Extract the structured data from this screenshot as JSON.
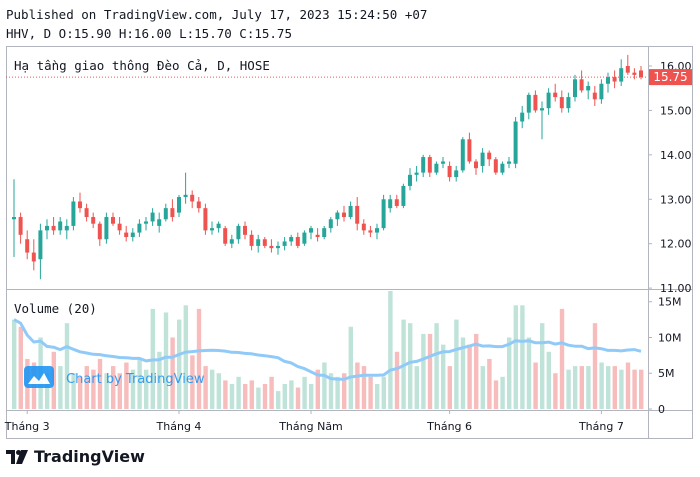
{
  "header": {
    "published": "Published on TradingView.com, July 17, 2023 15:24:50 +07",
    "ohlc": "HHV, D O:15.90 H:16.00 L:15.70 C:15.75"
  },
  "chart_title": "Hạ tầng giao thông Đèo Cả, D, HOSE",
  "last_price_label": "15.75",
  "volume_label": "Volume (20)",
  "watermark": "Chart by TradingView",
  "footer_brand": "TradingView",
  "colors": {
    "up": "#26a69a",
    "down": "#ef5350",
    "vol_up": "#bfe3d8",
    "vol_down": "#f7bcbc",
    "ma": "#90caf9",
    "price_line": "#ef5350"
  },
  "chart_data": {
    "type": "candlestick",
    "symbol": "HHV",
    "interval": "D",
    "exchange": "HOSE",
    "price_axis": {
      "ticks": [
        "16.00",
        "15.00",
        "14.00",
        "13.00",
        "12.00",
        "11.00"
      ],
      "range": [
        10.98,
        16.45
      ]
    },
    "volume_axis": {
      "ticks": [
        "15M",
        "10M",
        "5M",
        "0"
      ],
      "range": [
        0,
        16.5
      ]
    },
    "x_ticks": [
      {
        "label": "Tháng 3",
        "index": 2
      },
      {
        "label": "Tháng 4",
        "index": 25
      },
      {
        "label": "Tháng Năm",
        "index": 45
      },
      {
        "label": "Tháng 6",
        "index": 66
      },
      {
        "label": "Tháng 7",
        "index": 89
      }
    ],
    "candles": [
      [
        12.55,
        13.45,
        11.7,
        12.6
      ],
      [
        12.6,
        12.7,
        12.0,
        12.2
      ],
      [
        12.1,
        12.3,
        11.65,
        11.8
      ],
      [
        11.8,
        12.1,
        11.4,
        11.6
      ],
      [
        11.65,
        12.45,
        11.2,
        12.3
      ],
      [
        12.3,
        12.55,
        12.1,
        12.4
      ],
      [
        12.4,
        12.6,
        12.2,
        12.3
      ],
      [
        12.3,
        12.6,
        12.2,
        12.5
      ],
      [
        12.3,
        12.55,
        12.1,
        12.4
      ],
      [
        12.4,
        13.05,
        12.3,
        12.95
      ],
      [
        12.95,
        13.15,
        12.7,
        12.8
      ],
      [
        12.8,
        12.9,
        12.5,
        12.6
      ],
      [
        12.6,
        12.7,
        12.35,
        12.45
      ],
      [
        12.45,
        12.5,
        11.95,
        12.1
      ],
      [
        12.1,
        12.7,
        12.0,
        12.6
      ],
      [
        12.6,
        12.7,
        12.4,
        12.45
      ],
      [
        12.45,
        12.6,
        12.2,
        12.3
      ],
      [
        12.25,
        12.4,
        12.05,
        12.15
      ],
      [
        12.15,
        12.35,
        12.05,
        12.25
      ],
      [
        12.25,
        12.55,
        12.15,
        12.45
      ],
      [
        12.45,
        12.6,
        12.3,
        12.5
      ],
      [
        12.5,
        12.8,
        12.4,
        12.7
      ],
      [
        12.4,
        12.7,
        12.25,
        12.55
      ],
      [
        12.55,
        12.9,
        12.5,
        12.8
      ],
      [
        12.8,
        13.0,
        12.5,
        12.6
      ],
      [
        12.7,
        13.1,
        12.6,
        13.05
      ],
      [
        13.05,
        13.6,
        12.9,
        13.1
      ],
      [
        13.1,
        13.2,
        12.8,
        12.95
      ],
      [
        12.95,
        13.05,
        12.7,
        12.8
      ],
      [
        12.8,
        12.9,
        12.2,
        12.3
      ],
      [
        12.3,
        12.5,
        12.2,
        12.35
      ],
      [
        12.35,
        12.5,
        12.25,
        12.45
      ],
      [
        12.35,
        12.4,
        11.95,
        12.0
      ],
      [
        12.0,
        12.2,
        11.9,
        12.1
      ],
      [
        12.1,
        12.45,
        12.0,
        12.4
      ],
      [
        12.4,
        12.5,
        12.1,
        12.2
      ],
      [
        12.2,
        12.3,
        11.85,
        11.95
      ],
      [
        11.95,
        12.2,
        11.8,
        12.1
      ],
      [
        12.1,
        12.15,
        11.9,
        11.95
      ],
      [
        11.95,
        12.1,
        11.8,
        11.9
      ],
      [
        11.9,
        12.05,
        11.75,
        11.95
      ],
      [
        11.95,
        12.15,
        11.85,
        12.05
      ],
      [
        12.05,
        12.2,
        11.95,
        12.15
      ],
      [
        12.15,
        12.25,
        11.9,
        11.95
      ],
      [
        12.0,
        12.3,
        11.95,
        12.25
      ],
      [
        12.25,
        12.4,
        12.1,
        12.35
      ],
      [
        12.2,
        12.35,
        12.05,
        12.15
      ],
      [
        12.15,
        12.4,
        12.1,
        12.35
      ],
      [
        12.35,
        12.6,
        12.25,
        12.55
      ],
      [
        12.55,
        12.75,
        12.4,
        12.7
      ],
      [
        12.7,
        12.85,
        12.5,
        12.6
      ],
      [
        12.6,
        12.95,
        12.55,
        12.85
      ],
      [
        12.85,
        13.05,
        12.3,
        12.45
      ],
      [
        12.45,
        12.55,
        12.2,
        12.3
      ],
      [
        12.3,
        12.4,
        12.15,
        12.25
      ],
      [
        12.25,
        12.45,
        12.1,
        12.35
      ],
      [
        12.35,
        13.1,
        12.3,
        13.0
      ],
      [
        12.8,
        13.1,
        12.7,
        13.0
      ],
      [
        13.0,
        13.1,
        12.8,
        12.85
      ],
      [
        12.85,
        13.35,
        12.8,
        13.3
      ],
      [
        13.3,
        13.7,
        13.2,
        13.55
      ],
      [
        13.55,
        13.75,
        13.4,
        13.6
      ],
      [
        13.6,
        14.0,
        13.5,
        13.95
      ],
      [
        13.95,
        14.0,
        13.5,
        13.6
      ],
      [
        13.6,
        13.85,
        13.55,
        13.8
      ],
      [
        13.8,
        13.95,
        13.7,
        13.85
      ],
      [
        13.75,
        13.85,
        13.4,
        13.5
      ],
      [
        13.5,
        13.75,
        13.4,
        13.65
      ],
      [
        13.65,
        14.4,
        13.6,
        14.35
      ],
      [
        14.35,
        14.5,
        13.8,
        13.85
      ],
      [
        13.85,
        13.9,
        13.55,
        13.7
      ],
      [
        13.75,
        14.15,
        13.6,
        14.05
      ],
      [
        14.05,
        14.1,
        13.75,
        13.9
      ],
      [
        13.9,
        13.95,
        13.55,
        13.6
      ],
      [
        13.6,
        13.85,
        13.55,
        13.8
      ],
      [
        13.8,
        13.95,
        13.7,
        13.85
      ],
      [
        13.8,
        14.85,
        13.7,
        14.75
      ],
      [
        14.75,
        15.1,
        14.6,
        14.95
      ],
      [
        14.95,
        15.4,
        14.8,
        15.35
      ],
      [
        15.35,
        15.45,
        14.95,
        15.0
      ],
      [
        15.0,
        15.2,
        14.35,
        15.05
      ],
      [
        15.05,
        15.5,
        14.9,
        15.4
      ],
      [
        15.4,
        15.6,
        15.2,
        15.3
      ],
      [
        15.3,
        15.45,
        14.95,
        15.05
      ],
      [
        15.05,
        15.4,
        14.95,
        15.3
      ],
      [
        15.3,
        15.8,
        15.2,
        15.7
      ],
      [
        15.7,
        15.9,
        15.4,
        15.45
      ],
      [
        15.45,
        15.65,
        15.25,
        15.55
      ],
      [
        15.4,
        15.55,
        15.1,
        15.25
      ],
      [
        15.25,
        15.7,
        15.15,
        15.6
      ],
      [
        15.6,
        15.85,
        15.4,
        15.75
      ],
      [
        15.75,
        15.9,
        15.5,
        15.65
      ],
      [
        15.65,
        16.15,
        15.55,
        15.95
      ],
      [
        16.0,
        16.25,
        15.8,
        15.85
      ],
      [
        15.85,
        15.95,
        15.7,
        15.8
      ],
      [
        15.9,
        16.0,
        15.7,
        15.75
      ]
    ],
    "volumes": [
      12.5,
      11.5,
      7.0,
      6.5,
      10.0,
      5.0,
      8.0,
      6.0,
      12.0,
      5.0,
      4.5,
      6.0,
      5.5,
      7.0,
      5.0,
      6.0,
      5.0,
      6.5,
      5.5,
      7.0,
      5.5,
      14.0,
      8.0,
      13.5,
      10.0,
      12.5,
      14.5,
      7.5,
      14.0,
      6.0,
      5.5,
      5.0,
      4.0,
      3.5,
      4.5,
      3.5,
      4.0,
      3.0,
      3.5,
      4.5,
      2.5,
      3.5,
      4.0,
      3.0,
      4.5,
      3.5,
      5.5,
      6.5,
      5.0,
      4.5,
      5.0,
      11.5,
      6.5,
      6.0,
      4.5,
      3.5,
      4.5,
      16.5,
      8.0,
      12.5,
      12.0,
      6.0,
      10.5,
      10.5,
      12.0,
      9.0,
      6.0,
      12.5,
      10.0,
      9.0,
      10.5,
      6.0,
      7.0,
      4.0,
      4.5,
      10.0,
      14.5,
      14.5,
      10.0,
      6.5,
      12.0,
      8.0,
      5.0,
      14.0,
      5.5,
      6.0,
      6.0,
      6.0,
      12.0,
      6.5,
      6.0,
      6.0,
      5.5,
      6.5,
      5.5,
      5.5
    ]
  }
}
